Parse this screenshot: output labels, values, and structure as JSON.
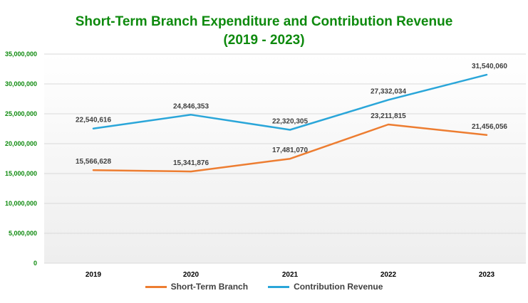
{
  "chart_data": {
    "type": "line",
    "title": "Short-Term Branch Expenditure and Contribution Revenue",
    "subtitle": "(2019 - 2023)",
    "categories": [
      "2019",
      "2020",
      "2021",
      "2022",
      "2023"
    ],
    "ylim": [
      0,
      35000000
    ],
    "ytick_labels": [
      "0",
      "5,000,000",
      "10,000,000",
      "15,000,000",
      "20,000,000",
      "25,000,000",
      "30,000,000",
      "35,000,000"
    ],
    "ytick_values": [
      0,
      5000000,
      10000000,
      15000000,
      20000000,
      25000000,
      30000000,
      35000000
    ],
    "grid": true,
    "legend_position": "bottom",
    "series": [
      {
        "name": "Short-Term Branch",
        "color": "#ed7d31",
        "values": [
          15566628,
          15341876,
          17481070,
          23211815,
          21456056
        ],
        "labels": [
          "15,566,628",
          "15,341,876",
          "17,481,070",
          "23,211,815",
          "21,456,056"
        ]
      },
      {
        "name": "Contribution Revenue",
        "color": "#2aa6d9",
        "values": [
          22540616,
          24846353,
          22320305,
          27332034,
          31540060
        ],
        "labels": [
          "22,540,616",
          "24,846,353",
          "22,320,305",
          "27,332,034",
          "31,540,060"
        ]
      }
    ]
  },
  "colors": {
    "title": "#0e8a0e",
    "axis_labels": "#0e8a0e",
    "gridline": "#d9d9d9"
  }
}
